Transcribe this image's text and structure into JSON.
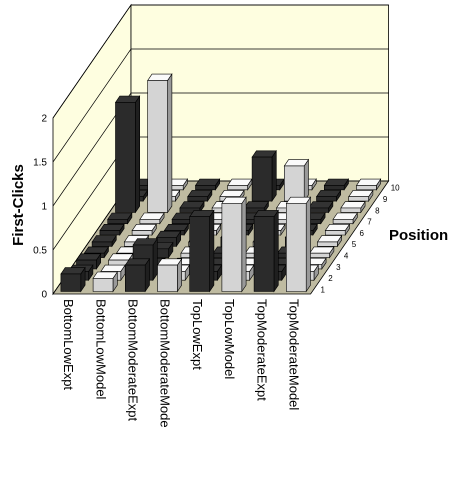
{
  "chart_data": {
    "type": "bar",
    "xlabel": "",
    "ylabel": "First-Clicks",
    "zlabel": "Position",
    "ylim": [
      0,
      2
    ],
    "y_ticks": [
      "0",
      "0.5",
      "1",
      "1.5",
      "2"
    ],
    "categories": [
      "BottomLowExpt",
      "BottomLowModel",
      "BottomModerateExpt",
      "BottomModerateMode",
      "TopLowExpt",
      "TopLowModel",
      "TopModerateExpt",
      "TopModerateModel"
    ],
    "positions": [
      "1",
      "2",
      "3",
      "4",
      "5",
      "6",
      "7",
      "8",
      "9",
      "10"
    ],
    "series": [
      {
        "name": "1",
        "values": [
          0.2,
          0.15,
          0.3,
          0.3,
          0.85,
          1.0,
          0.85,
          1.0
        ]
      },
      {
        "name": "2",
        "values": [
          0.1,
          0.1,
          0.4,
          0.1,
          0.1,
          0.1,
          0.1,
          0.1
        ]
      },
      {
        "name": "3",
        "values": [
          0.1,
          0.1,
          0.05,
          0.05,
          0.05,
          0.05,
          0.05,
          0.05
        ]
      },
      {
        "name": "4",
        "values": [
          0.05,
          0.05,
          0.1,
          0.05,
          0.05,
          0.05,
          0.05,
          0.05
        ]
      },
      {
        "name": "5",
        "values": [
          0.05,
          0.05,
          0.1,
          0.05,
          0.1,
          0.05,
          0.1,
          0.05
        ]
      },
      {
        "name": "6",
        "values": [
          0.05,
          0.05,
          0.05,
          0.05,
          0.05,
          0.05,
          0.05,
          0.05
        ]
      },
      {
        "name": "7",
        "values": [
          0.05,
          0.05,
          0.05,
          0.05,
          0.05,
          0.05,
          0.05,
          0.05
        ]
      },
      {
        "name": "8",
        "values": [
          1.25,
          1.5,
          0.05,
          0.05,
          0.05,
          0.05,
          0.05,
          0.05
        ]
      },
      {
        "name": "9",
        "values": [
          0.05,
          0.05,
          0.05,
          0.05,
          0.5,
          0.4,
          0.05,
          0.05
        ]
      },
      {
        "name": "10",
        "values": [
          0.05,
          0.05,
          0.05,
          0.05,
          0.05,
          0.05,
          0.05,
          0.05
        ]
      }
    ],
    "bar_colors": [
      "#2b2b2b",
      "#d4d4d4"
    ],
    "floor_color": "#bfbba1",
    "wall_color": "#fefee0",
    "grid": true,
    "legend": "none"
  }
}
